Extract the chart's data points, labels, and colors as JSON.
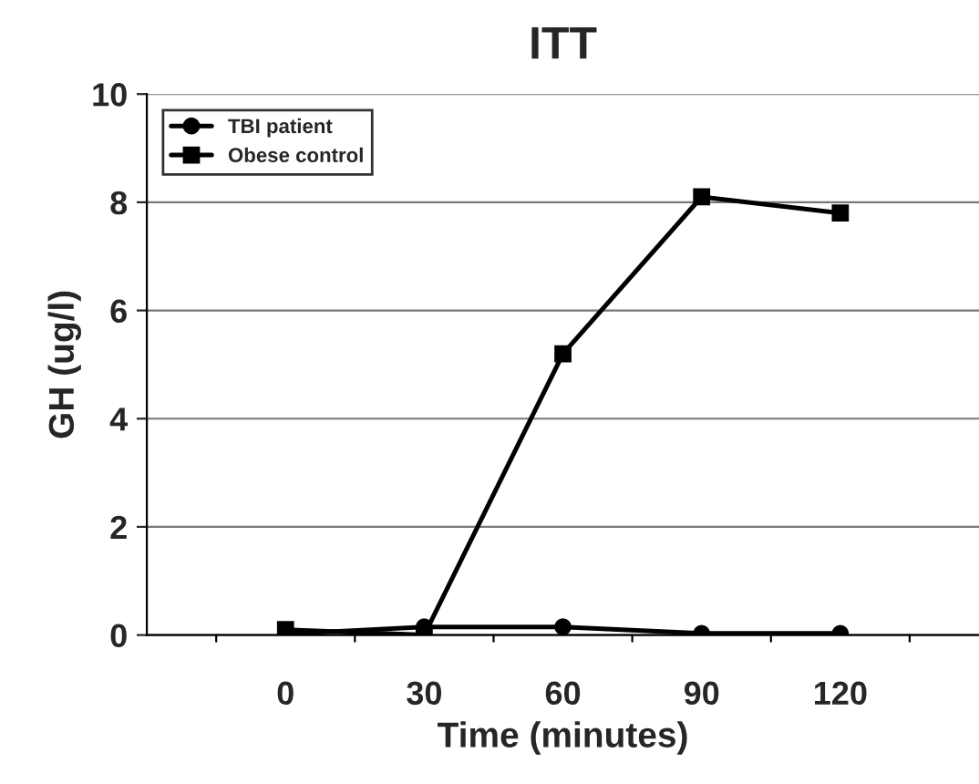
{
  "chart_data": {
    "type": "line",
    "title": "ITT",
    "xlabel": "Time (minutes)",
    "ylabel": "GH (ug/l)",
    "categories": [
      "0",
      "30",
      "60",
      "90",
      "120"
    ],
    "series": [
      {
        "name": "TBI patient",
        "color": "#000000",
        "marker": "circle",
        "values": [
          0.02,
          0.15,
          0.15,
          0.03,
          0.03
        ]
      },
      {
        "name": "Obese control",
        "color": "#000000",
        "marker": "square",
        "values": [
          0.1,
          0.0,
          5.2,
          8.1,
          7.8
        ]
      }
    ],
    "ylim": [
      0,
      10
    ],
    "yticks": [
      0,
      2,
      4,
      6,
      8,
      10
    ],
    "grid": "y",
    "legend": "top left",
    "line_style": "solid"
  }
}
